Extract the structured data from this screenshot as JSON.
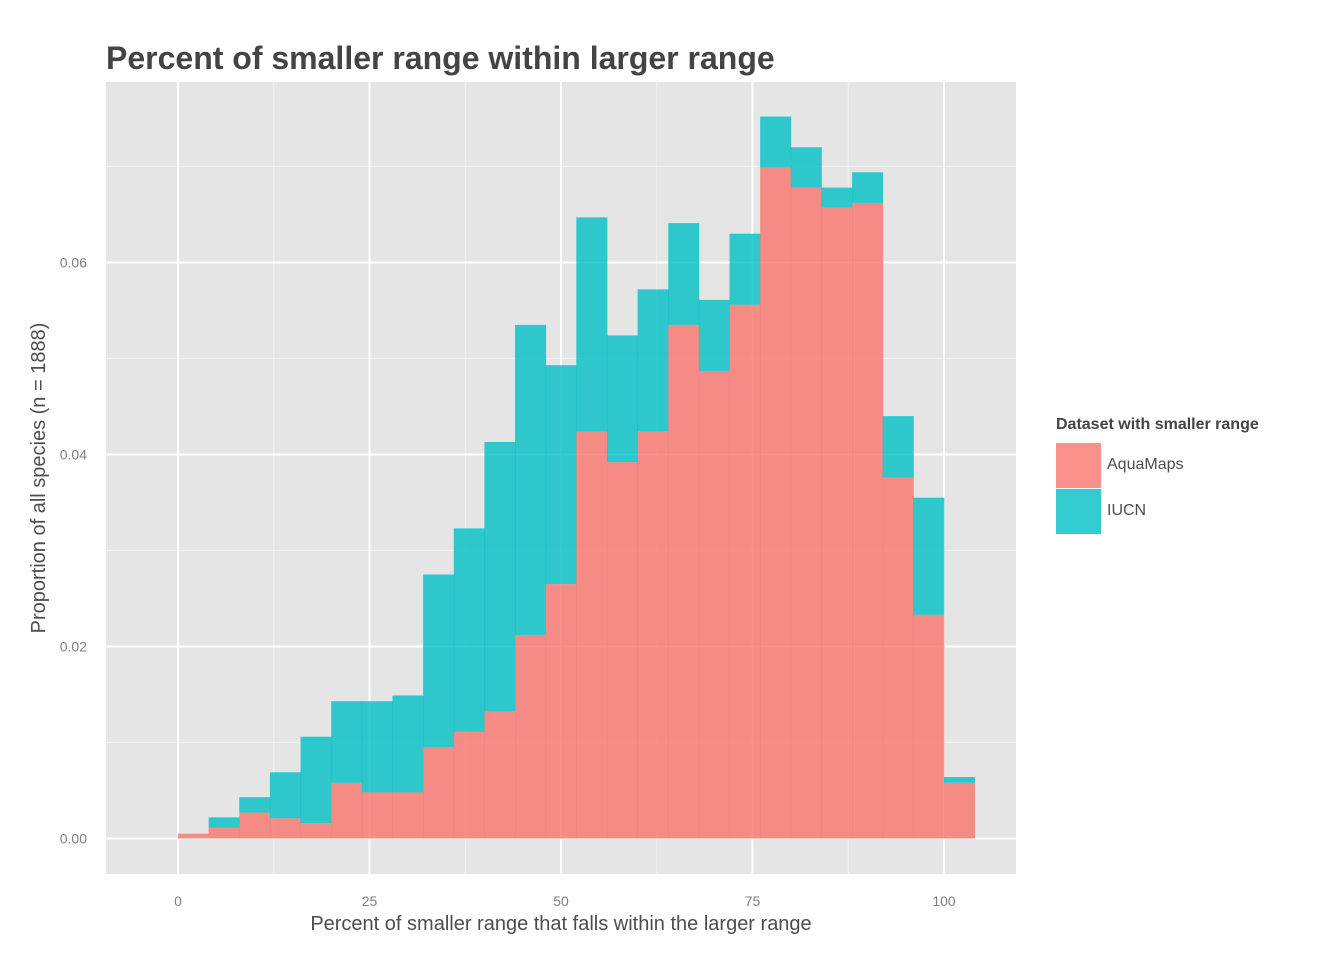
{
  "chart_data": {
    "type": "bar",
    "subtype": "stacked-histogram",
    "title": "Percent of smaller range within larger range",
    "xlabel": "Percent of smaller range that falls within the larger range",
    "ylabel": "Proportion of all species (n = 1888)",
    "xlim": [
      -9.4,
      109.4
    ],
    "ylim": [
      -0.0037,
      0.0788
    ],
    "x_ticks": [
      0,
      25,
      50,
      75,
      100
    ],
    "x_tick_labels": [
      "0",
      "25",
      "50",
      "75",
      "100"
    ],
    "y_ticks": [
      0,
      0.02,
      0.04,
      0.06
    ],
    "y_tick_labels": [
      "0.00",
      "0.02",
      "0.04",
      "0.06"
    ],
    "bin_width": 4,
    "bin_starts": [
      0,
      4,
      8,
      12,
      16,
      20,
      24,
      28,
      32,
      36,
      40,
      44,
      48,
      52,
      56,
      60,
      64,
      68,
      72,
      76,
      80,
      84,
      88,
      92,
      96,
      100
    ],
    "series": [
      {
        "name": "AquaMaps",
        "color": "#F8766D",
        "values": [
          0.0005,
          0.0011,
          0.0027,
          0.0021,
          0.0016,
          0.0058,
          0.0048,
          0.0048,
          0.0095,
          0.0111,
          0.0132,
          0.0212,
          0.0265,
          0.0424,
          0.0392,
          0.0424,
          0.0535,
          0.0487,
          0.0556,
          0.0699,
          0.0678,
          0.0657,
          0.0662,
          0.0376,
          0.0233,
          0.0058
        ]
      },
      {
        "name": "IUCN",
        "color": "#00BFC4",
        "values": [
          0.0,
          0.0011,
          0.0016,
          0.0048,
          0.009,
          0.0085,
          0.0095,
          0.0101,
          0.018,
          0.0212,
          0.0281,
          0.0323,
          0.0228,
          0.0223,
          0.0132,
          0.0148,
          0.0106,
          0.0074,
          0.0074,
          0.0053,
          0.0042,
          0.0021,
          0.0032,
          0.0064,
          0.0122,
          0.0006
        ]
      }
    ],
    "legend_title": "Dataset with smaller range",
    "legend_position": "right",
    "grid": true,
    "panel_color": "#E5E5E5"
  }
}
